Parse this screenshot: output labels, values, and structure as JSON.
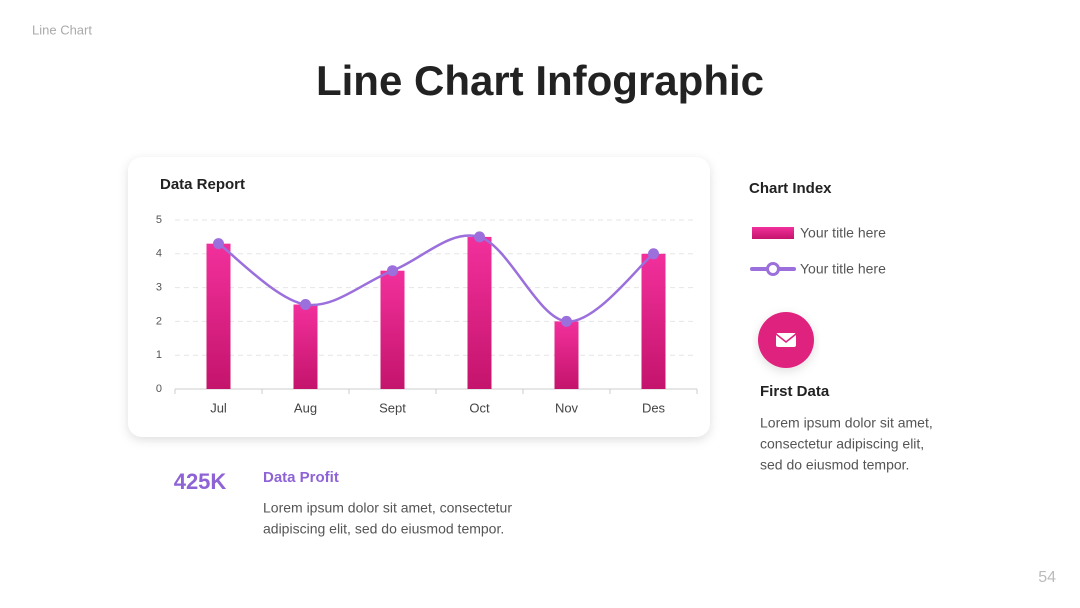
{
  "header": {
    "label": "Line Chart",
    "title": "Line Chart Infographic",
    "page": "54"
  },
  "chart_data": {
    "type": "combo",
    "title": "Data Report",
    "categories": [
      "Jul",
      "Aug",
      "Sept",
      "Oct",
      "Nov",
      "Des"
    ],
    "series": [
      {
        "name": "Your title here",
        "type": "bar",
        "color": "#e8238c",
        "values": [
          4.3,
          2.5,
          3.5,
          4.5,
          2.0,
          4.0
        ]
      },
      {
        "name": "Your title here",
        "type": "line",
        "color": "#9b6fdc",
        "values": [
          4.3,
          2.5,
          3.5,
          4.5,
          2.0,
          4.0
        ]
      }
    ],
    "ylim": [
      0,
      5
    ],
    "yticks": [
      0,
      1,
      2,
      3,
      4,
      5
    ],
    "grid": true
  },
  "index": {
    "title": "Chart Index"
  },
  "first_data": {
    "title": "First Data",
    "text": [
      "Lorem ipsum dolor sit amet,",
      "consectetur adipiscing elit,",
      "sed do eiusmod tempor."
    ]
  },
  "profit": {
    "value": "425K",
    "title": "Data Profit",
    "text": [
      "Lorem ipsum dolor sit amet, consectetur",
      "adipiscing elit, sed do eiusmod tempor."
    ]
  }
}
